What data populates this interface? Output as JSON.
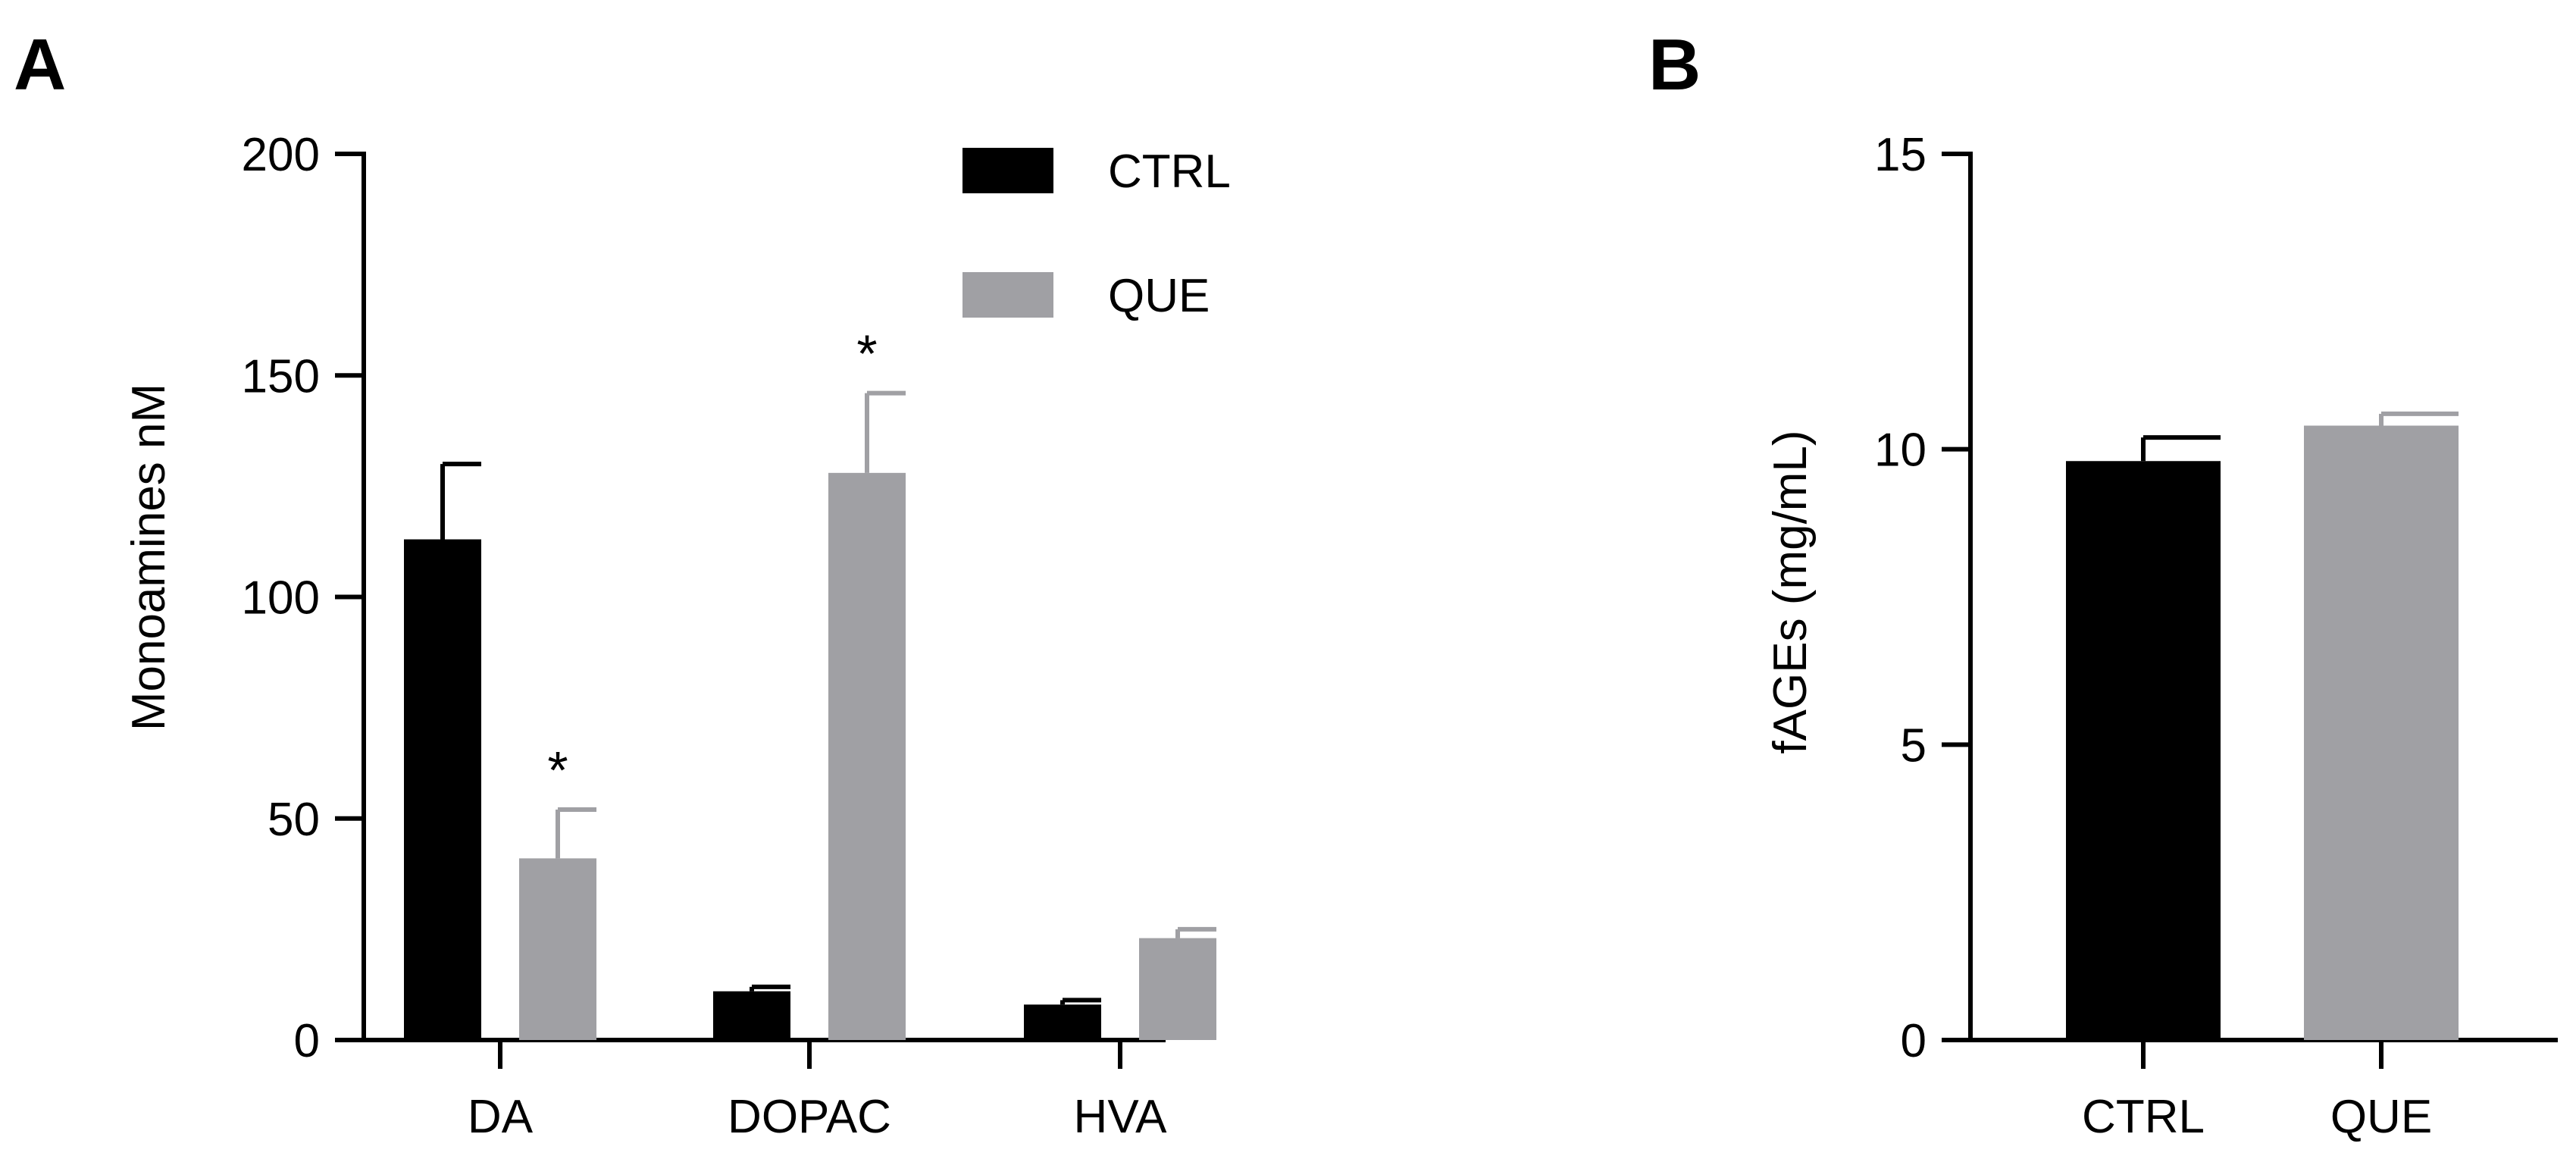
{
  "chart_data": [
    {
      "panel_label": "A",
      "type": "bar",
      "ylabel": "Monoamines nM",
      "xlabel": "",
      "ylim": [
        0,
        200
      ],
      "yticks": [
        0,
        50,
        100,
        150,
        200
      ],
      "categories": [
        "DA",
        "DOPAC",
        "HVA"
      ],
      "legend_position": "top-right",
      "series": [
        {
          "name": "CTRL",
          "color": "#000000",
          "values": [
            113,
            11,
            8
          ],
          "errors": [
            17,
            1,
            1
          ]
        },
        {
          "name": "QUE",
          "color": "#a0a0a4",
          "values": [
            41,
            128,
            23
          ],
          "errors": [
            11,
            18,
            2
          ]
        }
      ],
      "annotations": [
        {
          "text": "*",
          "category": "DA",
          "series": "QUE"
        },
        {
          "text": "*",
          "category": "DOPAC",
          "series": "QUE"
        }
      ],
      "grid": false
    },
    {
      "panel_label": "B",
      "type": "bar",
      "ylabel": "fAGEs (mg/mL)",
      "xlabel": "",
      "ylim": [
        0,
        15
      ],
      "yticks": [
        0,
        5,
        10,
        15
      ],
      "categories": [
        "CTRL",
        "QUE"
      ],
      "colors": [
        "#000000",
        "#a0a0a4"
      ],
      "values": [
        9.8,
        10.4
      ],
      "errors": [
        0.4,
        0.2
      ],
      "grid": false
    }
  ]
}
